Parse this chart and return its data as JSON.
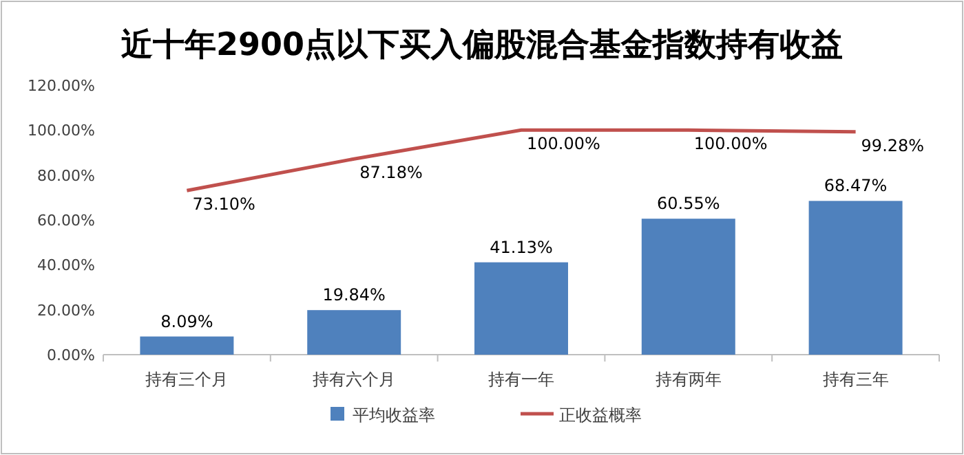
{
  "chart_data": {
    "type": "bar",
    "title": "近十年2900点以下买入偏股混合基金指数持有收益",
    "categories": [
      "持有三个月",
      "持有六个月",
      "持有一年",
      "持有两年",
      "持有三年"
    ],
    "series": [
      {
        "name": "平均收益率",
        "color": "#4f81bd",
        "values": [
          8.09,
          19.84,
          41.13,
          60.55,
          68.47
        ],
        "value_labels": [
          "8.09%",
          "19.84%",
          "41.13%",
          "60.55%",
          "68.47%"
        ]
      },
      {
        "name": "正收益概率",
        "type": "line",
        "color": "#c0504d",
        "values": [
          73.1,
          87.18,
          100.0,
          100.0,
          99.28
        ],
        "value_labels": [
          "73.10%",
          "87.18%",
          "100.00%",
          "100.00%",
          "99.28%"
        ]
      }
    ],
    "ylim": [
      0,
      120
    ],
    "yticks": [
      {
        "value": 0,
        "label": "0.00%"
      },
      {
        "value": 20,
        "label": "20.00%"
      },
      {
        "value": 40,
        "label": "40.00%"
      },
      {
        "value": 60,
        "label": "60.00%"
      },
      {
        "value": 80,
        "label": "80.00%"
      },
      {
        "value": 100,
        "label": "100.00%"
      },
      {
        "value": 120,
        "label": "120.00%"
      }
    ],
    "grid": false,
    "legend": "bottom",
    "marker": "none",
    "line_style": "solid"
  }
}
